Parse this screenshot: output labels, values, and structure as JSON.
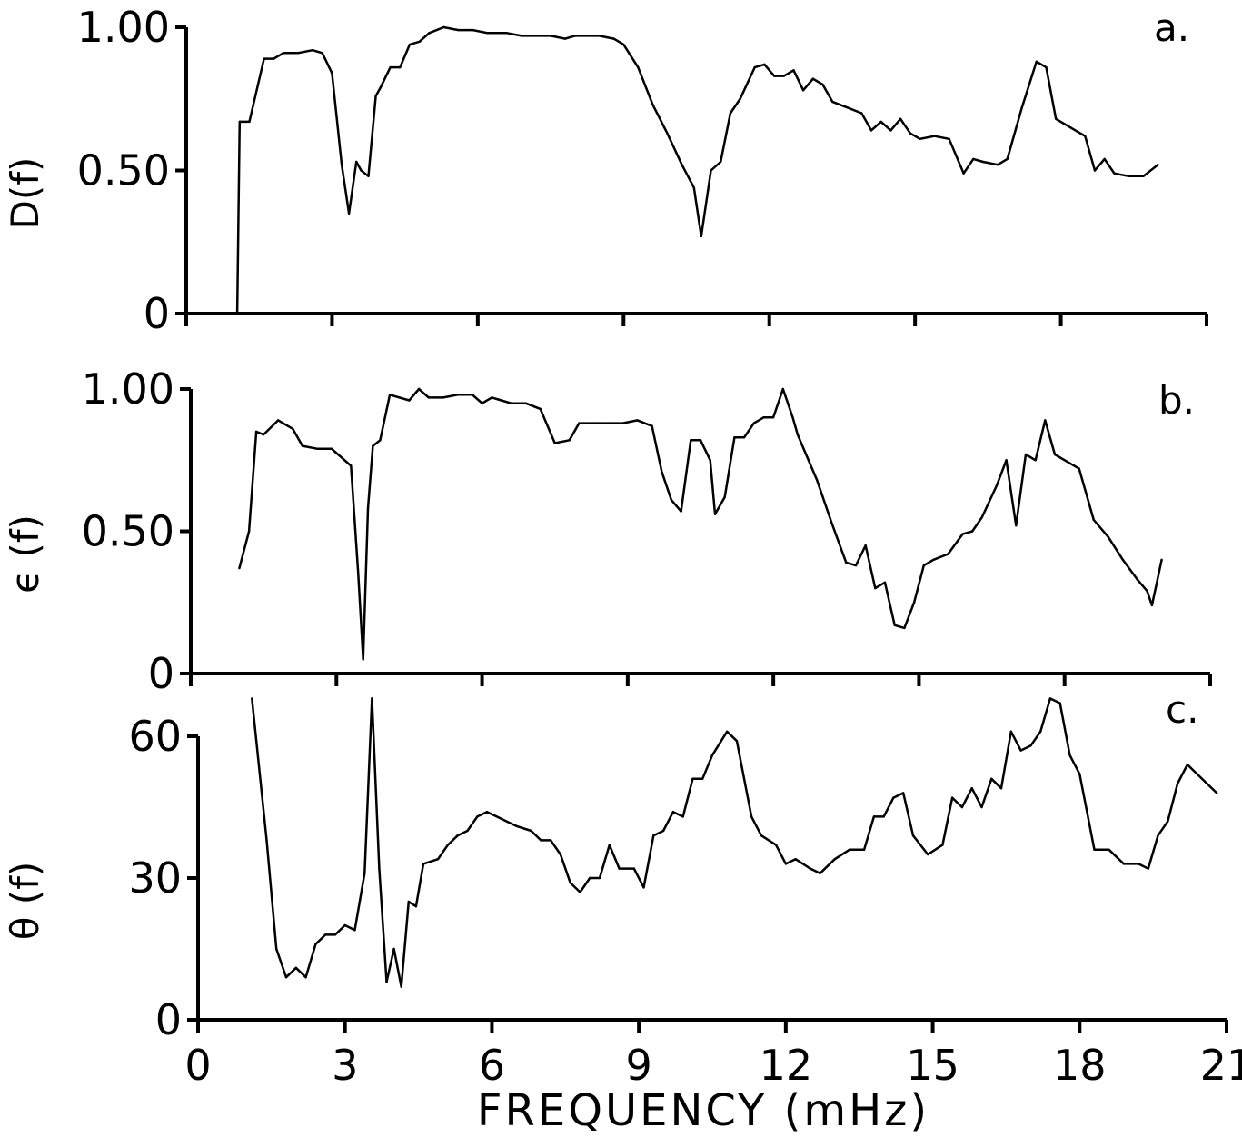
{
  "chart_data": [
    {
      "type": "line",
      "panel": "a.",
      "ylabel": "D(f)",
      "ylim": [
        0,
        1.0
      ],
      "yticks": [
        "0",
        "0.50",
        "1.00"
      ],
      "xlim": [
        0,
        21
      ],
      "x": [
        1.0,
        1.05,
        1.1,
        1.3,
        1.6,
        1.8,
        2.0,
        2.3,
        2.6,
        2.8,
        3.0,
        3.2,
        3.35,
        3.5,
        3.6,
        3.75,
        3.9,
        4.0,
        4.2,
        4.4,
        4.6,
        4.8,
        5.0,
        5.3,
        5.6,
        5.9,
        6.2,
        6.6,
        6.9,
        7.2,
        7.5,
        7.8,
        8.0,
        8.2,
        8.5,
        8.8,
        9.0,
        9.3,
        9.6,
        9.9,
        10.2,
        10.45,
        10.6,
        10.8,
        11.0,
        11.2,
        11.4,
        11.7,
        11.9,
        12.1,
        12.3,
        12.5,
        12.7,
        12.9,
        13.1,
        13.3,
        13.6,
        13.9,
        14.1,
        14.3,
        14.5,
        14.7,
        14.9,
        15.1,
        15.4,
        15.7,
        16.0,
        16.2,
        16.4,
        16.7,
        16.9,
        17.2,
        17.5,
        17.7,
        17.9,
        18.2,
        18.5,
        18.7,
        18.9,
        19.1,
        19.4,
        19.7,
        20.0
      ],
      "y": [
        0.0,
        0.0,
        0.67,
        0.67,
        0.89,
        0.89,
        0.91,
        0.91,
        0.92,
        0.91,
        0.84,
        0.52,
        0.35,
        0.53,
        0.5,
        0.48,
        0.76,
        0.79,
        0.86,
        0.86,
        0.94,
        0.95,
        0.98,
        1.0,
        0.99,
        0.99,
        0.98,
        0.98,
        0.97,
        0.97,
        0.97,
        0.96,
        0.97,
        0.97,
        0.97,
        0.96,
        0.94,
        0.86,
        0.73,
        0.63,
        0.52,
        0.44,
        0.27,
        0.5,
        0.53,
        0.7,
        0.75,
        0.86,
        0.87,
        0.83,
        0.83,
        0.85,
        0.78,
        0.82,
        0.8,
        0.74,
        0.72,
        0.7,
        0.64,
        0.67,
        0.64,
        0.68,
        0.63,
        0.61,
        0.62,
        0.61,
        0.49,
        0.54,
        0.53,
        0.52,
        0.54,
        0.72,
        0.88,
        0.86,
        0.68,
        0.65,
        0.62,
        0.5,
        0.54,
        0.49,
        0.48,
        0.48,
        0.52
      ]
    },
    {
      "type": "line",
      "panel": "b.",
      "ylabel": "ϵ (f)",
      "ylim": [
        0,
        1.0
      ],
      "yticks": [
        "0",
        "0.50",
        "1.00"
      ],
      "xlim": [
        0,
        21
      ],
      "x": [
        1.0,
        1.2,
        1.35,
        1.5,
        1.8,
        2.1,
        2.3,
        2.6,
        2.9,
        3.1,
        3.3,
        3.45,
        3.55,
        3.65,
        3.75,
        3.9,
        4.1,
        4.3,
        4.5,
        4.7,
        4.9,
        5.2,
        5.5,
        5.8,
        6.0,
        6.2,
        6.4,
        6.6,
        6.9,
        7.2,
        7.5,
        7.8,
        8.0,
        8.3,
        8.6,
        8.9,
        9.2,
        9.5,
        9.7,
        9.9,
        10.1,
        10.3,
        10.5,
        10.7,
        10.8,
        11.0,
        11.2,
        11.4,
        11.6,
        11.8,
        12.0,
        12.2,
        12.4,
        12.5,
        12.7,
        12.9,
        13.2,
        13.5,
        13.7,
        13.9,
        14.1,
        14.3,
        14.5,
        14.7,
        14.9,
        15.1,
        15.3,
        15.6,
        15.9,
        16.1,
        16.3,
        16.6,
        16.8,
        17.0,
        17.2,
        17.4,
        17.6,
        17.8,
        18.1,
        18.3,
        18.6,
        18.9,
        19.2,
        19.5,
        19.7,
        19.8,
        20.0
      ],
      "y": [
        0.37,
        0.5,
        0.85,
        0.84,
        0.89,
        0.86,
        0.8,
        0.79,
        0.79,
        0.76,
        0.73,
        0.35,
        0.05,
        0.58,
        0.8,
        0.82,
        0.98,
        0.97,
        0.96,
        1.0,
        0.97,
        0.97,
        0.98,
        0.98,
        0.95,
        0.97,
        0.96,
        0.95,
        0.95,
        0.93,
        0.81,
        0.82,
        0.88,
        0.88,
        0.88,
        0.88,
        0.89,
        0.87,
        0.71,
        0.61,
        0.57,
        0.82,
        0.82,
        0.75,
        0.56,
        0.62,
        0.83,
        0.83,
        0.88,
        0.9,
        0.9,
        1.0,
        0.9,
        0.84,
        0.76,
        0.68,
        0.53,
        0.39,
        0.38,
        0.45,
        0.3,
        0.32,
        0.17,
        0.16,
        0.25,
        0.38,
        0.4,
        0.42,
        0.49,
        0.5,
        0.55,
        0.66,
        0.75,
        0.52,
        0.77,
        0.75,
        0.89,
        0.77,
        0.74,
        0.72,
        0.54,
        0.48,
        0.4,
        0.33,
        0.29,
        0.24,
        0.4
      ]
    },
    {
      "type": "line",
      "panel": "c.",
      "ylabel": "θ (f)",
      "ylim": [
        0,
        60
      ],
      "yticks": [
        "0",
        "30",
        "60"
      ],
      "xlim": [
        0,
        21
      ],
      "xticks": [
        "0",
        "3",
        "6",
        "9",
        "12",
        "15",
        "18",
        "21"
      ],
      "xlabel": "FREQUENCY (mHz)",
      "x": [
        1.1,
        1.4,
        1.6,
        1.8,
        2.0,
        2.2,
        2.4,
        2.6,
        2.8,
        3.0,
        3.2,
        3.4,
        3.55,
        3.7,
        3.85,
        4.0,
        4.15,
        4.3,
        4.45,
        4.6,
        4.9,
        5.1,
        5.3,
        5.5,
        5.7,
        5.9,
        6.1,
        6.3,
        6.5,
        6.8,
        7.0,
        7.2,
        7.4,
        7.6,
        7.8,
        8.0,
        8.2,
        8.4,
        8.6,
        8.9,
        9.1,
        9.3,
        9.5,
        9.7,
        9.9,
        10.1,
        10.3,
        10.5,
        10.8,
        11.0,
        11.3,
        11.5,
        11.8,
        12.0,
        12.2,
        12.5,
        12.7,
        13.0,
        13.3,
        13.6,
        13.8,
        14.0,
        14.2,
        14.4,
        14.6,
        14.9,
        15.2,
        15.4,
        15.6,
        15.8,
        16.0,
        16.2,
        16.4,
        16.6,
        16.8,
        17.0,
        17.2,
        17.4,
        17.6,
        17.8,
        18.0,
        18.3,
        18.6,
        18.9,
        19.2,
        19.4,
        19.6,
        19.8,
        20.0,
        20.2,
        20.4,
        20.6,
        20.8
      ],
      "y": [
        68,
        38,
        15,
        9,
        11,
        9,
        16,
        18,
        18,
        20,
        19,
        31,
        68,
        32,
        8,
        15,
        7,
        25,
        24,
        33,
        34,
        37,
        39,
        40,
        43,
        44,
        43,
        42,
        41,
        40,
        38,
        38,
        35,
        29,
        27,
        30,
        30,
        37,
        32,
        32,
        28,
        39,
        40,
        44,
        43,
        51,
        51,
        56,
        61,
        59,
        43,
        39,
        37,
        33,
        34,
        32,
        31,
        34,
        36,
        36,
        43,
        43,
        47,
        48,
        39,
        35,
        37,
        47,
        45,
        49,
        45,
        51,
        49,
        61,
        57,
        58,
        61,
        68,
        67,
        56,
        52,
        36,
        36,
        33,
        33,
        32,
        39,
        42,
        50,
        54,
        52,
        50,
        48
      ]
    }
  ]
}
